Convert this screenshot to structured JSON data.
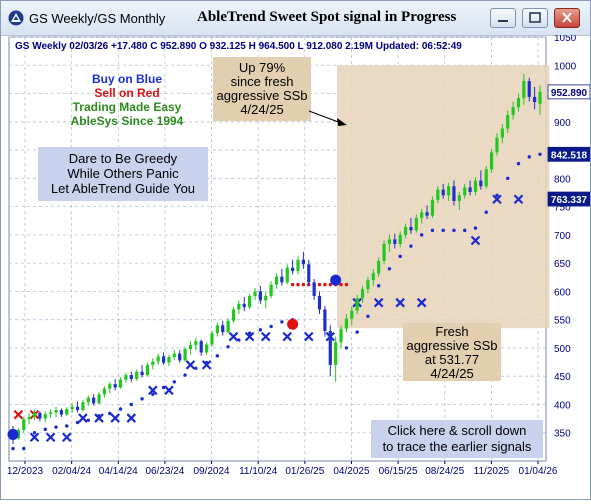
{
  "window": {
    "app_title": "GS Weekly/GS Monthly",
    "main_title": "AbleTrend Sweet Spot signal in Progress"
  },
  "header": {
    "info": "GS  Weekly 02/03/26 +17.480 C 952.890 O 932.125 H 964.500 L 912.080 2.19M Updated: 06:52:49"
  },
  "legend_text": {
    "line1": "Buy on Blue",
    "line2": "Sell on Red",
    "line3": "Trading Made Easy",
    "line4": "AbleSys Since 1994",
    "color1": "#1a2fd8",
    "color2": "#e01010",
    "color3": "#2e8b1e",
    "color4": "#2e8b1e"
  },
  "greedy_box": {
    "line1": "Dare to Be Greedy",
    "line2": "While Others Panic",
    "line3": "Let AbleTrend Guide You"
  },
  "up_box": {
    "line1": "Up 79%",
    "line2": "since fresh",
    "line3": "aggressive SSb",
    "line4": "4/24/25"
  },
  "fresh_box": {
    "line1": "Fresh",
    "line2": "aggressive SSb",
    "line3": "at 531.77",
    "line4": "4/24/25"
  },
  "click_box": {
    "line1": "Click here & scroll down",
    "line2": "to trace the earlier signals"
  },
  "price_tags": [
    {
      "value": "952.890",
      "y": 952.89,
      "bg": "#ffffff",
      "fg": "#000080"
    },
    {
      "value": "842.518",
      "y": 842.518,
      "bg": "#0a1a8a",
      "fg": "#ffffff"
    },
    {
      "value": "763.337",
      "y": 763.337,
      "bg": "#0a1a8a",
      "fg": "#ffffff"
    }
  ],
  "chart_data": {
    "type": "candlestick",
    "title": "AbleTrend Sweet Spot signal in Progress",
    "ylim": [
      300,
      1050
    ],
    "y_ticks": [
      350,
      400,
      450,
      500,
      550,
      600,
      650,
      700,
      750,
      800,
      850,
      900,
      950,
      1000,
      1050
    ],
    "x_ticks": [
      "12/2023",
      "02/04/24",
      "04/14/24",
      "06/23/24",
      "09/2024",
      "11/10/24",
      "01/26/25",
      "04/2025",
      "06/15/25",
      "08/24/25",
      "11/2025",
      "01/04/26"
    ],
    "grid": true,
    "colors": {
      "bull": "#22c81e",
      "bear": "#1f2fc8",
      "dots": "#1a2ad0",
      "red_dots": "#e01010",
      "x_marks": "#1a2ad0",
      "highlight": "#e8d4b8"
    },
    "candles": [
      {
        "o": 355,
        "h": 362,
        "l": 330,
        "c": 340,
        "bull": false
      },
      {
        "o": 340,
        "h": 358,
        "l": 338,
        "c": 355,
        "bull": true
      },
      {
        "o": 355,
        "h": 378,
        "l": 350,
        "c": 374,
        "bull": true
      },
      {
        "o": 374,
        "h": 385,
        "l": 365,
        "c": 378,
        "bull": true
      },
      {
        "o": 378,
        "h": 390,
        "l": 372,
        "c": 385,
        "bull": true
      },
      {
        "o": 385,
        "h": 388,
        "l": 370,
        "c": 375,
        "bull": false
      },
      {
        "o": 375,
        "h": 388,
        "l": 368,
        "c": 383,
        "bull": true
      },
      {
        "o": 383,
        "h": 392,
        "l": 376,
        "c": 386,
        "bull": true
      },
      {
        "o": 386,
        "h": 396,
        "l": 378,
        "c": 390,
        "bull": true
      },
      {
        "o": 390,
        "h": 393,
        "l": 378,
        "c": 382,
        "bull": false
      },
      {
        "o": 382,
        "h": 395,
        "l": 380,
        "c": 392,
        "bull": true
      },
      {
        "o": 392,
        "h": 402,
        "l": 385,
        "c": 396,
        "bull": true
      },
      {
        "o": 396,
        "h": 405,
        "l": 386,
        "c": 390,
        "bull": false
      },
      {
        "o": 390,
        "h": 408,
        "l": 388,
        "c": 404,
        "bull": true
      },
      {
        "o": 404,
        "h": 416,
        "l": 398,
        "c": 412,
        "bull": true
      },
      {
        "o": 412,
        "h": 418,
        "l": 398,
        "c": 402,
        "bull": false
      },
      {
        "o": 402,
        "h": 422,
        "l": 400,
        "c": 418,
        "bull": true
      },
      {
        "o": 418,
        "h": 432,
        "l": 412,
        "c": 428,
        "bull": true
      },
      {
        "o": 428,
        "h": 440,
        "l": 420,
        "c": 436,
        "bull": true
      },
      {
        "o": 436,
        "h": 445,
        "l": 425,
        "c": 430,
        "bull": false
      },
      {
        "o": 430,
        "h": 448,
        "l": 428,
        "c": 444,
        "bull": true
      },
      {
        "o": 444,
        "h": 456,
        "l": 438,
        "c": 452,
        "bull": true
      },
      {
        "o": 452,
        "h": 458,
        "l": 440,
        "c": 445,
        "bull": false
      },
      {
        "o": 445,
        "h": 462,
        "l": 442,
        "c": 458,
        "bull": true
      },
      {
        "o": 458,
        "h": 470,
        "l": 448,
        "c": 452,
        "bull": false
      },
      {
        "o": 452,
        "h": 474,
        "l": 450,
        "c": 470,
        "bull": true
      },
      {
        "o": 470,
        "h": 482,
        "l": 462,
        "c": 476,
        "bull": true
      },
      {
        "o": 476,
        "h": 490,
        "l": 470,
        "c": 485,
        "bull": true
      },
      {
        "o": 485,
        "h": 492,
        "l": 470,
        "c": 474,
        "bull": false
      },
      {
        "o": 474,
        "h": 488,
        "l": 468,
        "c": 484,
        "bull": true
      },
      {
        "o": 484,
        "h": 496,
        "l": 478,
        "c": 490,
        "bull": true
      },
      {
        "o": 490,
        "h": 496,
        "l": 474,
        "c": 478,
        "bull": false
      },
      {
        "o": 478,
        "h": 502,
        "l": 476,
        "c": 498,
        "bull": true
      },
      {
        "o": 498,
        "h": 512,
        "l": 488,
        "c": 505,
        "bull": true
      },
      {
        "o": 505,
        "h": 518,
        "l": 496,
        "c": 512,
        "bull": true
      },
      {
        "o": 512,
        "h": 515,
        "l": 486,
        "c": 492,
        "bull": false
      },
      {
        "o": 492,
        "h": 510,
        "l": 488,
        "c": 506,
        "bull": true
      },
      {
        "o": 506,
        "h": 530,
        "l": 502,
        "c": 526,
        "bull": true
      },
      {
        "o": 526,
        "h": 545,
        "l": 520,
        "c": 540,
        "bull": true
      },
      {
        "o": 540,
        "h": 548,
        "l": 522,
        "c": 528,
        "bull": false
      },
      {
        "o": 528,
        "h": 552,
        "l": 526,
        "c": 548,
        "bull": true
      },
      {
        "o": 548,
        "h": 572,
        "l": 544,
        "c": 568,
        "bull": true
      },
      {
        "o": 568,
        "h": 584,
        "l": 560,
        "c": 578,
        "bull": true
      },
      {
        "o": 578,
        "h": 590,
        "l": 565,
        "c": 572,
        "bull": false
      },
      {
        "o": 572,
        "h": 596,
        "l": 568,
        "c": 592,
        "bull": true
      },
      {
        "o": 592,
        "h": 606,
        "l": 585,
        "c": 600,
        "bull": true
      },
      {
        "o": 600,
        "h": 610,
        "l": 578,
        "c": 584,
        "bull": false
      },
      {
        "o": 584,
        "h": 600,
        "l": 570,
        "c": 592,
        "bull": true
      },
      {
        "o": 592,
        "h": 618,
        "l": 588,
        "c": 612,
        "bull": true
      },
      {
        "o": 612,
        "h": 632,
        "l": 605,
        "c": 626,
        "bull": true
      },
      {
        "o": 626,
        "h": 640,
        "l": 610,
        "c": 616,
        "bull": false
      },
      {
        "o": 616,
        "h": 648,
        "l": 612,
        "c": 642,
        "bull": true
      },
      {
        "o": 642,
        "h": 656,
        "l": 630,
        "c": 636,
        "bull": false
      },
      {
        "o": 636,
        "h": 662,
        "l": 630,
        "c": 656,
        "bull": true
      },
      {
        "o": 656,
        "h": 670,
        "l": 640,
        "c": 648,
        "bull": false
      },
      {
        "o": 648,
        "h": 656,
        "l": 610,
        "c": 616,
        "bull": false
      },
      {
        "o": 616,
        "h": 622,
        "l": 585,
        "c": 592,
        "bull": false
      },
      {
        "o": 592,
        "h": 600,
        "l": 560,
        "c": 568,
        "bull": false
      },
      {
        "o": 568,
        "h": 574,
        "l": 520,
        "c": 530,
        "bull": false
      },
      {
        "o": 530,
        "h": 540,
        "l": 450,
        "c": 470,
        "bull": false
      },
      {
        "o": 470,
        "h": 520,
        "l": 440,
        "c": 510,
        "bull": true
      },
      {
        "o": 510,
        "h": 540,
        "l": 500,
        "c": 534,
        "bull": true
      },
      {
        "o": 534,
        "h": 560,
        "l": 528,
        "c": 552,
        "bull": true
      },
      {
        "o": 552,
        "h": 574,
        "l": 540,
        "c": 566,
        "bull": true
      },
      {
        "o": 566,
        "h": 594,
        "l": 560,
        "c": 588,
        "bull": true
      },
      {
        "o": 588,
        "h": 610,
        "l": 580,
        "c": 604,
        "bull": true
      },
      {
        "o": 604,
        "h": 626,
        "l": 596,
        "c": 620,
        "bull": true
      },
      {
        "o": 620,
        "h": 640,
        "l": 610,
        "c": 632,
        "bull": true
      },
      {
        "o": 632,
        "h": 660,
        "l": 626,
        "c": 654,
        "bull": true
      },
      {
        "o": 654,
        "h": 690,
        "l": 648,
        "c": 684,
        "bull": true
      },
      {
        "o": 684,
        "h": 700,
        "l": 670,
        "c": 692,
        "bull": true
      },
      {
        "o": 692,
        "h": 702,
        "l": 676,
        "c": 684,
        "bull": false
      },
      {
        "o": 684,
        "h": 706,
        "l": 678,
        "c": 700,
        "bull": true
      },
      {
        "o": 700,
        "h": 720,
        "l": 694,
        "c": 714,
        "bull": true
      },
      {
        "o": 714,
        "h": 730,
        "l": 702,
        "c": 708,
        "bull": false
      },
      {
        "o": 708,
        "h": 736,
        "l": 704,
        "c": 730,
        "bull": true
      },
      {
        "o": 730,
        "h": 746,
        "l": 720,
        "c": 740,
        "bull": true
      },
      {
        "o": 740,
        "h": 752,
        "l": 728,
        "c": 734,
        "bull": false
      },
      {
        "o": 734,
        "h": 768,
        "l": 730,
        "c": 762,
        "bull": true
      },
      {
        "o": 762,
        "h": 786,
        "l": 756,
        "c": 780,
        "bull": true
      },
      {
        "o": 780,
        "h": 790,
        "l": 764,
        "c": 770,
        "bull": false
      },
      {
        "o": 770,
        "h": 792,
        "l": 760,
        "c": 786,
        "bull": true
      },
      {
        "o": 786,
        "h": 796,
        "l": 752,
        "c": 760,
        "bull": false
      },
      {
        "o": 760,
        "h": 776,
        "l": 744,
        "c": 770,
        "bull": true
      },
      {
        "o": 770,
        "h": 790,
        "l": 764,
        "c": 784,
        "bull": true
      },
      {
        "o": 784,
        "h": 796,
        "l": 770,
        "c": 776,
        "bull": false
      },
      {
        "o": 776,
        "h": 802,
        "l": 770,
        "c": 796,
        "bull": true
      },
      {
        "o": 796,
        "h": 814,
        "l": 780,
        "c": 786,
        "bull": false
      },
      {
        "o": 786,
        "h": 822,
        "l": 782,
        "c": 816,
        "bull": true
      },
      {
        "o": 816,
        "h": 852,
        "l": 810,
        "c": 846,
        "bull": true
      },
      {
        "o": 846,
        "h": 880,
        "l": 840,
        "c": 872,
        "bull": true
      },
      {
        "o": 872,
        "h": 896,
        "l": 862,
        "c": 888,
        "bull": true
      },
      {
        "o": 888,
        "h": 920,
        "l": 880,
        "c": 912,
        "bull": true
      },
      {
        "o": 912,
        "h": 936,
        "l": 904,
        "c": 926,
        "bull": true
      },
      {
        "o": 926,
        "h": 950,
        "l": 918,
        "c": 942,
        "bull": true
      },
      {
        "o": 942,
        "h": 985,
        "l": 930,
        "c": 972,
        "bull": true
      },
      {
        "o": 972,
        "h": 978,
        "l": 936,
        "c": 944,
        "bull": false
      },
      {
        "o": 944,
        "h": 962,
        "l": 922,
        "c": 935,
        "bull": false
      },
      {
        "o": 932,
        "h": 964.5,
        "l": 912.08,
        "c": 952.89,
        "bull": true
      }
    ],
    "stop_dots": [
      {
        "i": 0,
        "y": 322
      },
      {
        "i": 2,
        "y": 322
      },
      {
        "i": 4,
        "y": 350
      },
      {
        "i": 6,
        "y": 356
      },
      {
        "i": 8,
        "y": 360
      },
      {
        "i": 10,
        "y": 362
      },
      {
        "i": 12,
        "y": 368
      },
      {
        "i": 14,
        "y": 372
      },
      {
        "i": 16,
        "y": 380
      },
      {
        "i": 18,
        "y": 384
      },
      {
        "i": 20,
        "y": 392
      },
      {
        "i": 22,
        "y": 400
      },
      {
        "i": 24,
        "y": 410
      },
      {
        "i": 26,
        "y": 418
      },
      {
        "i": 28,
        "y": 430
      },
      {
        "i": 30,
        "y": 440
      },
      {
        "i": 32,
        "y": 452
      },
      {
        "i": 34,
        "y": 464
      },
      {
        "i": 36,
        "y": 474
      },
      {
        "i": 38,
        "y": 486
      },
      {
        "i": 40,
        "y": 502
      },
      {
        "i": 42,
        "y": 514
      },
      {
        "i": 44,
        "y": 526
      },
      {
        "i": 46,
        "y": 532
      },
      {
        "i": 48,
        "y": 538
      },
      {
        "i": 50,
        "y": 546
      },
      {
        "i": 52,
        "y": 550
      },
      {
        "i": 62,
        "y": 500
      },
      {
        "i": 64,
        "y": 528
      },
      {
        "i": 66,
        "y": 556
      },
      {
        "i": 68,
        "y": 610
      },
      {
        "i": 70,
        "y": 640
      },
      {
        "i": 72,
        "y": 662
      },
      {
        "i": 74,
        "y": 680
      },
      {
        "i": 76,
        "y": 700
      },
      {
        "i": 78,
        "y": 708
      },
      {
        "i": 80,
        "y": 708
      },
      {
        "i": 82,
        "y": 708
      },
      {
        "i": 84,
        "y": 708
      },
      {
        "i": 86,
        "y": 712
      },
      {
        "i": 88,
        "y": 740
      },
      {
        "i": 90,
        "y": 770
      },
      {
        "i": 92,
        "y": 800
      },
      {
        "i": 94,
        "y": 826
      },
      {
        "i": 96,
        "y": 838
      },
      {
        "i": 98,
        "y": 842.5
      }
    ],
    "red_dot_line": {
      "i0": 52,
      "i1": 62,
      "y": 612
    },
    "x_marks": [
      {
        "i": 4,
        "y": 342,
        "color": "#1a2ad0"
      },
      {
        "i": 7,
        "y": 342,
        "color": "#1a2ad0"
      },
      {
        "i": 10,
        "y": 342,
        "color": "#1a2ad0"
      },
      {
        "i": 13,
        "y": 376,
        "color": "#1a2ad0"
      },
      {
        "i": 16,
        "y": 376,
        "color": "#1a2ad0"
      },
      {
        "i": 19,
        "y": 376,
        "color": "#1a2ad0"
      },
      {
        "i": 22,
        "y": 376,
        "color": "#1a2ad0"
      },
      {
        "i": 26,
        "y": 425,
        "color": "#1a2ad0"
      },
      {
        "i": 29,
        "y": 425,
        "color": "#1a2ad0"
      },
      {
        "i": 33,
        "y": 470,
        "color": "#1a2ad0"
      },
      {
        "i": 36,
        "y": 470,
        "color": "#1a2ad0"
      },
      {
        "i": 41,
        "y": 520,
        "color": "#1a2ad0"
      },
      {
        "i": 44,
        "y": 520,
        "color": "#1a2ad0"
      },
      {
        "i": 47,
        "y": 520,
        "color": "#1a2ad0"
      },
      {
        "i": 51,
        "y": 520,
        "color": "#1a2ad0"
      },
      {
        "i": 55,
        "y": 520,
        "color": "#1a2ad0"
      },
      {
        "i": 59,
        "y": 520,
        "color": "#1a2ad0"
      },
      {
        "i": 64,
        "y": 580,
        "color": "#1a2ad0"
      },
      {
        "i": 68,
        "y": 580,
        "color": "#1a2ad0"
      },
      {
        "i": 72,
        "y": 580,
        "color": "#1a2ad0"
      },
      {
        "i": 76,
        "y": 580,
        "color": "#1a2ad0"
      },
      {
        "i": 86,
        "y": 690,
        "color": "#1a2ad0"
      },
      {
        "i": 90,
        "y": 763,
        "color": "#1a2ad0"
      },
      {
        "i": 94,
        "y": 763,
        "color": "#1a2ad0"
      },
      {
        "i": 1,
        "y": 382,
        "color": "#e01010"
      },
      {
        "i": 4,
        "y": 382,
        "color": "#e01010"
      }
    ],
    "signal_circles": [
      {
        "i": 0,
        "y": 347,
        "color": "#1a2ad0"
      },
      {
        "i": 52,
        "y": 542,
        "color": "#e01010"
      },
      {
        "i": 60,
        "y": 620,
        "color": "#1a2ad0"
      }
    ],
    "highlight_range": {
      "i0": 61,
      "i1": 99,
      "y0": 535,
      "y1": 1000
    }
  }
}
